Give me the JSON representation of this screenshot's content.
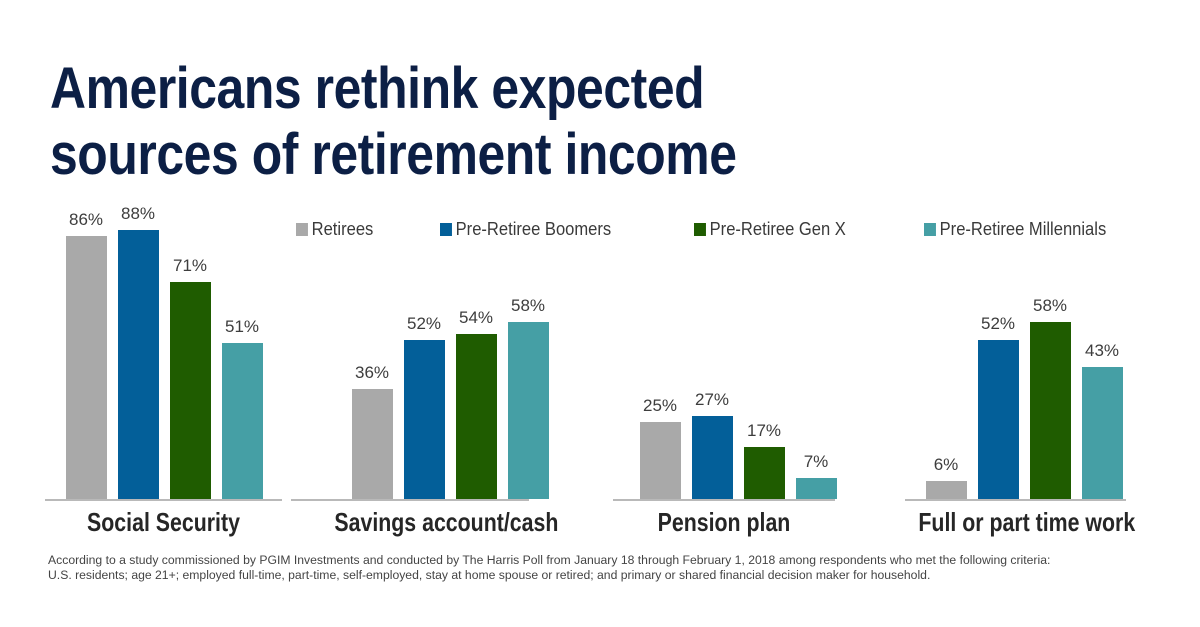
{
  "title_line1": "Americans rethink expected",
  "title_line2": "sources of retirement income",
  "legend": [
    {
      "label": "Retirees",
      "color": "#a9a9a9"
    },
    {
      "label": "Pre-Retiree Boomers",
      "color": "#035f99"
    },
    {
      "label": "Pre-Retiree Gen X",
      "color": "#1f5c00"
    },
    {
      "label": "Pre-Retiree Millennials",
      "color": "#459fa5"
    }
  ],
  "footnote_line1": "According to a study commissioned by PGIM Investments and conducted by The Harris Poll from January 18 through February 1, 2018 among respondents who met the following criteria:",
  "footnote_line2": "U.S. residents; age 21+; employed full-time, part-time, self-employed, stay at home spouse or retired; and primary or shared financial decision maker for household.",
  "chart_data": {
    "type": "bar",
    "title": "Americans rethink expected sources of retirement income",
    "xlabel": "",
    "ylabel": "",
    "ylim": [
      0,
      100
    ],
    "grid": false,
    "legend_position": "top-right",
    "categories": [
      "Social Security",
      "Savings account/cash",
      "Pension plan",
      "Full or part time work"
    ],
    "series": [
      {
        "name": "Retirees",
        "color": "#a9a9a9",
        "values": [
          86,
          36,
          25,
          6
        ]
      },
      {
        "name": "Pre-Retiree Boomers",
        "color": "#035f99",
        "values": [
          88,
          52,
          27,
          52
        ]
      },
      {
        "name": "Pre-Retiree Gen X",
        "color": "#1f5c00",
        "values": [
          71,
          54,
          17,
          58
        ]
      },
      {
        "name": "Pre-Retiree Millennials",
        "color": "#459fa5",
        "values": [
          51,
          58,
          7,
          43
        ]
      }
    ],
    "value_labels": [
      [
        "86%",
        "88%",
        "71%",
        "51%"
      ],
      [
        "36%",
        "52%",
        "54%",
        "58%"
      ],
      [
        "25%",
        "27%",
        "17%",
        "7%"
      ],
      [
        "6%",
        "52%",
        "58%",
        "43%"
      ]
    ]
  }
}
